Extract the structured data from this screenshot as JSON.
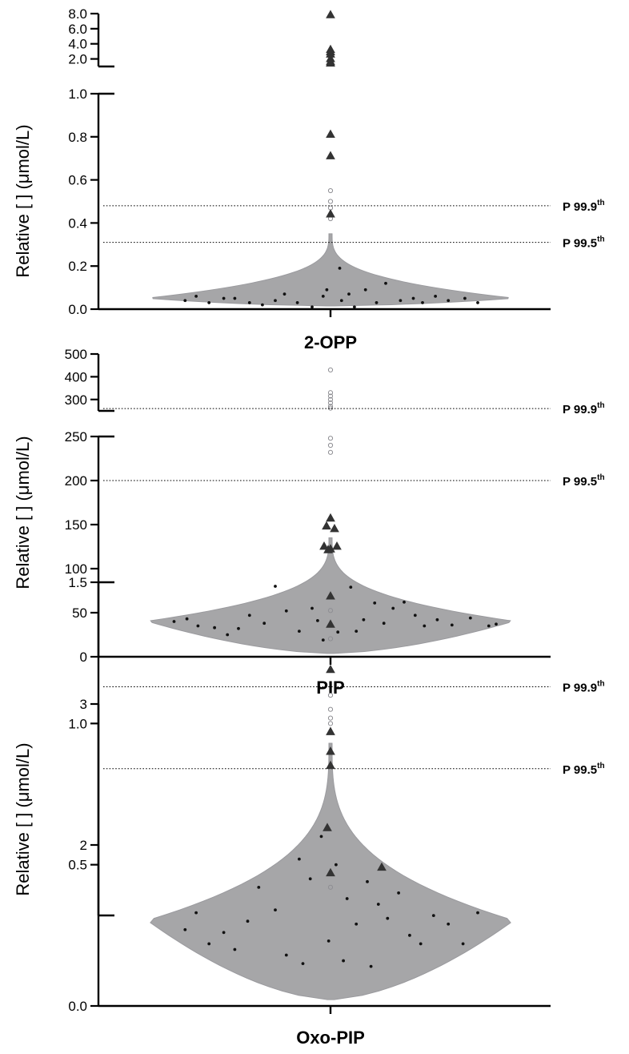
{
  "chart_data": [
    {
      "type": "scatter",
      "subtype": "violin-swarm",
      "title": "",
      "xlabel": "2-OPP",
      "ylabel": "Relative [ ] (μmol/L)",
      "y_axis_break": true,
      "lower_ylim": [
        0,
        1.0
      ],
      "lower_ticks": [
        "0.0",
        "0.2",
        "0.4",
        "0.6",
        "0.8",
        "1.0"
      ],
      "upper_ylim": [
        1.0,
        8.0
      ],
      "upper_ticks": [
        "2.0",
        "4.0",
        "6.0",
        "8.0"
      ],
      "distribution": {
        "baseline": 0.05,
        "half_width": [
          0.03,
          0.09,
          0.15,
          0.25,
          0.33,
          0.39
        ]
      },
      "percentile_lines": [
        {
          "label": "P 99.9",
          "sup": "th",
          "value": 0.48
        },
        {
          "label": "P 99.5",
          "sup": "th",
          "value": 0.31
        }
      ],
      "highlight_triangles": [
        7.8,
        3.2,
        2.9,
        2.6,
        2.0,
        1.6,
        1.4,
        0.81,
        0.71,
        0.44
      ],
      "outlier_circles": [
        0.55,
        0.5,
        0.47,
        0.42
      ],
      "dot_points": [
        {
          "x": -0.79,
          "y": 0.04
        },
        {
          "x": -0.73,
          "y": 0.06
        },
        {
          "x": -0.66,
          "y": 0.03
        },
        {
          "x": -0.58,
          "y": 0.05
        },
        {
          "x": -0.52,
          "y": 0.05
        },
        {
          "x": -0.44,
          "y": 0.03
        },
        {
          "x": -0.37,
          "y": 0.02
        },
        {
          "x": -0.3,
          "y": 0.04
        },
        {
          "x": -0.25,
          "y": 0.07
        },
        {
          "x": -0.18,
          "y": 0.03
        },
        {
          "x": -0.1,
          "y": 0.01
        },
        {
          "x": -0.04,
          "y": 0.06
        },
        {
          "x": 0.06,
          "y": 0.04
        },
        {
          "x": 0.13,
          "y": 0.01
        },
        {
          "x": 0.19,
          "y": 0.09
        },
        {
          "x": 0.25,
          "y": 0.03
        },
        {
          "x": 0.3,
          "y": 0.12
        },
        {
          "x": 0.38,
          "y": 0.04
        },
        {
          "x": 0.45,
          "y": 0.05
        },
        {
          "x": 0.5,
          "y": 0.03
        },
        {
          "x": 0.57,
          "y": 0.06
        },
        {
          "x": 0.64,
          "y": 0.04
        },
        {
          "x": 0.73,
          "y": 0.05
        },
        {
          "x": 0.8,
          "y": 0.03
        },
        {
          "x": 0.05,
          "y": 0.19
        },
        {
          "x": -0.02,
          "y": 0.09
        },
        {
          "x": 0.1,
          "y": 0.07
        }
      ]
    },
    {
      "type": "scatter",
      "subtype": "violin-swarm",
      "title": "",
      "xlabel": "PIP",
      "ylabel": "Relative [ ] (μmol/L)",
      "y_axis_break": true,
      "lower_ylim": [
        0,
        250
      ],
      "lower_ticks": [
        "0",
        "50",
        "100",
        "150",
        "200",
        "250"
      ],
      "upper_ylim": [
        250,
        500
      ],
      "upper_ticks": [
        "300",
        "400",
        "500"
      ],
      "distribution": {
        "baseline": 40,
        "half_width": [
          9,
          22,
          40,
          70,
          95,
          115
        ]
      },
      "percentile_lines": [
        {
          "label": "P 99.9",
          "sup": "th",
          "value": 260
        },
        {
          "label": "P 99.5",
          "sup": "th",
          "value": 200
        }
      ],
      "highlight_triangles": [
        157,
        148,
        145,
        125,
        122,
        125,
        121
      ],
      "outlier_circles": [
        430,
        330,
        315,
        300,
        285,
        270,
        262,
        248,
        240,
        232
      ],
      "dot_points": [
        {
          "x": -0.85,
          "y": 40
        },
        {
          "x": -0.78,
          "y": 43
        },
        {
          "x": -0.72,
          "y": 35
        },
        {
          "x": -0.63,
          "y": 33
        },
        {
          "x": -0.56,
          "y": 25
        },
        {
          "x": -0.5,
          "y": 32
        },
        {
          "x": -0.44,
          "y": 47
        },
        {
          "x": -0.36,
          "y": 38
        },
        {
          "x": -0.3,
          "y": 80
        },
        {
          "x": -0.24,
          "y": 52
        },
        {
          "x": -0.17,
          "y": 29
        },
        {
          "x": -0.1,
          "y": 55
        },
        {
          "x": -0.04,
          "y": 19
        },
        {
          "x": 0.04,
          "y": 28
        },
        {
          "x": 0.11,
          "y": 79
        },
        {
          "x": 0.18,
          "y": 42
        },
        {
          "x": 0.24,
          "y": 61
        },
        {
          "x": 0.29,
          "y": 38
        },
        {
          "x": 0.34,
          "y": 55
        },
        {
          "x": 0.4,
          "y": 62
        },
        {
          "x": 0.46,
          "y": 47
        },
        {
          "x": 0.51,
          "y": 35
        },
        {
          "x": 0.58,
          "y": 42
        },
        {
          "x": 0.66,
          "y": 36
        },
        {
          "x": 0.76,
          "y": 44
        },
        {
          "x": 0.86,
          "y": 35
        },
        {
          "x": 0.9,
          "y": 37
        },
        {
          "x": 0.14,
          "y": 29
        },
        {
          "x": -0.07,
          "y": 41
        }
      ]
    },
    {
      "type": "scatter",
      "subtype": "violin-swarm",
      "title": "",
      "xlabel": "Oxo-PIP",
      "ylabel": "Relative [ ] (μmol/L)",
      "y_axis_break": true,
      "lower_ylim": [
        0,
        1.5
      ],
      "lower_ticks": [
        "0.0",
        "0.5",
        "1.0",
        "1.5"
      ],
      "upper_ylim": [
        1.5,
        3
      ],
      "upper_ticks": [
        "2",
        "3"
      ],
      "distribution": {
        "baseline": 0.3,
        "half_width": [
          0.04,
          0.12,
          0.2,
          0.32,
          0.45,
          0.55
        ]
      },
      "percentile_lines": [
        {
          "label": "P 99.9",
          "sup": "th",
          "value": 1.13
        },
        {
          "label": "P 99.5",
          "sup": "th",
          "value": 0.84
        }
      ],
      "highlight_triangles": [
        1.8,
        1.45,
        1.35,
        1.19,
        0.97,
        0.9,
        0.85,
        0.63,
        0.49
      ],
      "outlier_circles": [
        2.9,
        1.7,
        1.4,
        1.3,
        1.1,
        1.05,
        1.0
      ],
      "dot_points": [
        {
          "x": -0.79,
          "y": 0.27
        },
        {
          "x": -0.73,
          "y": 0.33
        },
        {
          "x": -0.66,
          "y": 0.22
        },
        {
          "x": -0.58,
          "y": 0.26
        },
        {
          "x": -0.52,
          "y": 0.2
        },
        {
          "x": -0.45,
          "y": 0.3
        },
        {
          "x": -0.39,
          "y": 0.42
        },
        {
          "x": -0.3,
          "y": 0.34
        },
        {
          "x": -0.24,
          "y": 0.18
        },
        {
          "x": -0.17,
          "y": 0.52
        },
        {
          "x": -0.11,
          "y": 0.45
        },
        {
          "x": -0.05,
          "y": 0.6
        },
        {
          "x": 0.03,
          "y": 0.5
        },
        {
          "x": 0.09,
          "y": 0.38
        },
        {
          "x": 0.14,
          "y": 0.29
        },
        {
          "x": 0.2,
          "y": 0.44
        },
        {
          "x": 0.26,
          "y": 0.36
        },
        {
          "x": 0.31,
          "y": 0.31
        },
        {
          "x": 0.37,
          "y": 0.4
        },
        {
          "x": 0.43,
          "y": 0.25
        },
        {
          "x": 0.49,
          "y": 0.22
        },
        {
          "x": 0.56,
          "y": 0.32
        },
        {
          "x": 0.64,
          "y": 0.29
        },
        {
          "x": 0.72,
          "y": 0.22
        },
        {
          "x": 0.8,
          "y": 0.33
        },
        {
          "x": -0.15,
          "y": 0.15
        },
        {
          "x": 0.07,
          "y": 0.16
        },
        {
          "x": -0.01,
          "y": 0.23
        },
        {
          "x": 0.22,
          "y": 0.14
        }
      ]
    }
  ]
}
